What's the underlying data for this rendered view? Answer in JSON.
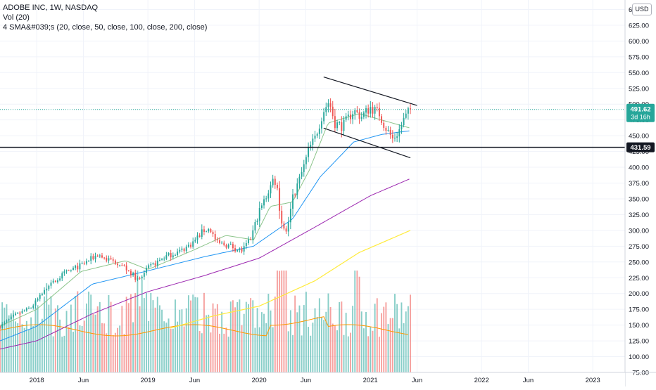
{
  "legend": {
    "symbol": "ADOBE INC, 1W, NASDAQ",
    "volume": "Vol (20)",
    "sma": "4 SMA&#039;s (20, close, 50, close, 100, close, 200, close)"
  },
  "currency_button": "USD",
  "price_label": {
    "value": "491.62",
    "countdown": "3d 16h",
    "color": "#26a69a"
  },
  "level_label": {
    "value": "431.59"
  },
  "colors": {
    "up": "#26a69a",
    "down": "#ef5350",
    "sma20": "#8bc48a",
    "sma50": "#2196f3",
    "sma100": "#9c27b0",
    "sma200": "#ffeb3b",
    "volume_ma": "#ff9800",
    "level_line": "#131722",
    "trend_line": "#131722"
  },
  "chart_data": {
    "type": "candlestick",
    "y_axis": {
      "ticks": [
        75,
        100,
        125,
        150,
        175,
        200,
        225,
        250,
        275,
        300,
        325,
        350,
        375,
        400,
        425,
        450,
        475,
        500,
        525,
        550,
        575,
        600,
        625,
        650
      ],
      "range": [
        75,
        665
      ]
    },
    "x_axis": {
      "ticks": [
        {
          "label": "2018",
          "t": 2018.0
        },
        {
          "label": "Jun",
          "t": 2018.42
        },
        {
          "label": "2019",
          "t": 2019.0
        },
        {
          "label": "Jun",
          "t": 2019.42
        },
        {
          "label": "2020",
          "t": 2020.0
        },
        {
          "label": "Jun",
          "t": 2020.42
        },
        {
          "label": "2021",
          "t": 2021.0
        },
        {
          "label": "Jun",
          "t": 2021.42
        },
        {
          "label": "2022",
          "t": 2022.0
        },
        {
          "label": "Jun",
          "t": 2022.42
        },
        {
          "label": "2023",
          "t": 2023.0
        }
      ],
      "range": [
        2017.67,
        2023.29
      ]
    },
    "anchors": [
      [
        2017.67,
        148
      ],
      [
        2017.8,
        165
      ],
      [
        2017.95,
        178
      ],
      [
        2018.1,
        210
      ],
      [
        2018.25,
        232
      ],
      [
        2018.4,
        245
      ],
      [
        2018.55,
        262
      ],
      [
        2018.62,
        255
      ],
      [
        2018.75,
        248
      ],
      [
        2018.85,
        232
      ],
      [
        2018.92,
        220
      ],
      [
        2019.0,
        240
      ],
      [
        2019.15,
        258
      ],
      [
        2019.3,
        268
      ],
      [
        2019.4,
        280
      ],
      [
        2019.5,
        300
      ],
      [
        2019.56,
        302
      ],
      [
        2019.62,
        280
      ],
      [
        2019.75,
        275
      ],
      [
        2019.8,
        270
      ],
      [
        2019.85,
        268
      ],
      [
        2019.92,
        285
      ],
      [
        2020.0,
        330
      ],
      [
        2020.08,
        360
      ],
      [
        2020.13,
        383
      ],
      [
        2020.16,
        370
      ],
      [
        2020.2,
        310
      ],
      [
        2020.25,
        300
      ],
      [
        2020.3,
        350
      ],
      [
        2020.4,
        400
      ],
      [
        2020.45,
        430
      ],
      [
        2020.5,
        445
      ],
      [
        2020.58,
        490
      ],
      [
        2020.63,
        505
      ],
      [
        2020.68,
        470
      ],
      [
        2020.75,
        465
      ],
      [
        2020.85,
        490
      ],
      [
        2020.92,
        480
      ],
      [
        2021.0,
        495
      ],
      [
        2021.08,
        485
      ],
      [
        2021.13,
        465
      ],
      [
        2021.2,
        445
      ],
      [
        2021.25,
        455
      ],
      [
        2021.3,
        475
      ],
      [
        2021.36,
        491.62
      ]
    ],
    "last_price": 491.62,
    "horizontal_level": 431.59,
    "trend_lines": [
      [
        [
          2020.58,
          543
        ],
        [
          2021.42,
          498
        ]
      ],
      [
        [
          2020.58,
          462
        ],
        [
          2021.36,
          415
        ]
      ]
    ],
    "sma_anchors": {
      "sma20": [
        [
          2017.67,
          148
        ],
        [
          2018.0,
          175
        ],
        [
          2018.4,
          235
        ],
        [
          2018.8,
          252
        ],
        [
          2019.0,
          238
        ],
        [
          2019.4,
          268
        ],
        [
          2019.7,
          292
        ],
        [
          2019.95,
          285
        ],
        [
          2020.1,
          338
        ],
        [
          2020.3,
          345
        ],
        [
          2020.45,
          395
        ],
        [
          2020.62,
          470
        ],
        [
          2020.9,
          485
        ],
        [
          2021.2,
          470
        ],
        [
          2021.36,
          462
        ]
      ],
      "sma50": [
        [
          2017.67,
          125
        ],
        [
          2018.0,
          148
        ],
        [
          2018.5,
          215
        ],
        [
          2019.0,
          236
        ],
        [
          2019.5,
          258
        ],
        [
          2019.95,
          275
        ],
        [
          2020.3,
          318
        ],
        [
          2020.55,
          385
        ],
        [
          2020.85,
          440
        ],
        [
          2021.1,
          452
        ],
        [
          2021.36,
          458
        ]
      ],
      "sma100": [
        [
          2017.67,
          112
        ],
        [
          2018.0,
          125
        ],
        [
          2018.5,
          168
        ],
        [
          2019.0,
          203
        ],
        [
          2019.5,
          228
        ],
        [
          2020.0,
          256
        ],
        [
          2020.5,
          305
        ],
        [
          2021.0,
          355
        ],
        [
          2021.36,
          382
        ]
      ],
      "sma200": [
        [
          2019.2,
          145
        ],
        [
          2019.6,
          165
        ],
        [
          2020.0,
          180
        ],
        [
          2020.5,
          220
        ],
        [
          2020.9,
          265
        ],
        [
          2021.36,
          300
        ]
      ]
    },
    "volume_bars": 186
  }
}
